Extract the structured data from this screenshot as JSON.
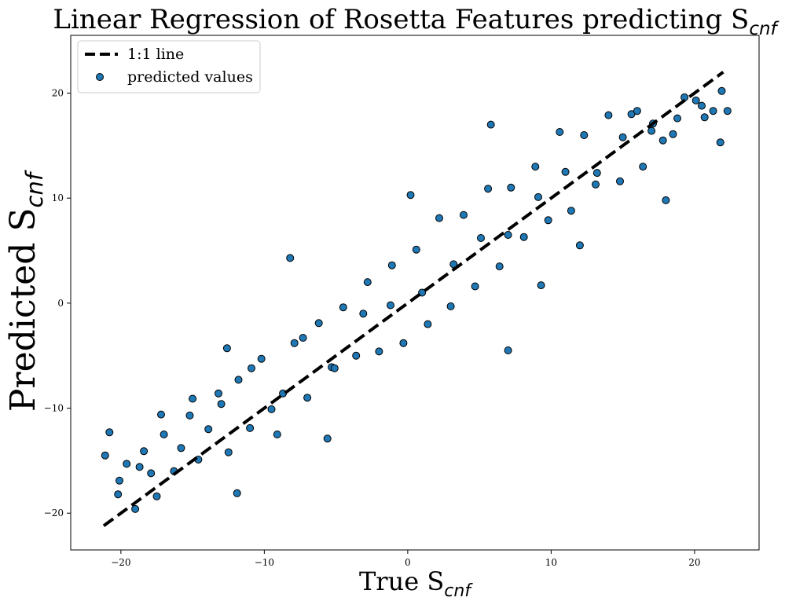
{
  "chart_data": {
    "type": "scatter",
    "title": "Linear Regression of Rosetta Features predicting S",
    "title_subscript": "cnf",
    "xlabel": "True S",
    "xlabel_subscript": "cnf",
    "ylabel": "Predicted S",
    "ylabel_subscript": "cnf",
    "xlim": [
      -23.5,
      24.5
    ],
    "ylim": [
      -23.5,
      25.5
    ],
    "xticks": [
      -20,
      -10,
      0,
      10,
      20
    ],
    "yticks": [
      -20,
      -10,
      0,
      10,
      20
    ],
    "xtick_labels": [
      "−20",
      "−10",
      "0",
      "10",
      "20"
    ],
    "ytick_labels": [
      "−20",
      "−10",
      "0",
      "10",
      "20"
    ],
    "grid": false,
    "legend_position": "top-left",
    "series": [
      {
        "name": "1:1 line",
        "kind": "line",
        "style": "dashed",
        "color": "#000000",
        "x": [
          -21.2,
          22.0
        ],
        "y": [
          -21.2,
          22.0
        ]
      },
      {
        "name": "predicted values",
        "kind": "scatter",
        "color": "#1f77b4",
        "edge_color": "#000000",
        "x": [
          -21.1,
          -20.8,
          -20.2,
          -19.6,
          -19.0,
          -18.4,
          -17.9,
          -17.5,
          -17.0,
          -16.3,
          -15.8,
          -15.2,
          -14.6,
          -13.9,
          -13.2,
          -12.5,
          -11.8,
          -11.0,
          -10.2,
          -9.5,
          -8.7,
          -7.9,
          -7.0,
          -6.2,
          -5.3,
          -4.5,
          -3.6,
          -2.8,
          -2.0,
          -1.1,
          -0.3,
          0.6,
          1.4,
          2.2,
          3.0,
          3.9,
          4.7,
          5.6,
          6.4,
          7.2,
          8.1,
          8.9,
          9.8,
          10.6,
          11.4,
          12.3,
          13.1,
          14.0,
          14.8,
          15.6,
          16.4,
          17.1,
          17.8,
          18.5,
          19.3,
          20.1,
          20.7,
          21.3,
          21.8,
          22.3,
          -20.1,
          -18.7,
          -17.2,
          -15.0,
          -13.0,
          -10.9,
          -9.1,
          -7.3,
          -5.1,
          -3.1,
          -1.2,
          1.0,
          3.2,
          5.1,
          7.0,
          9.1,
          11.0,
          13.2,
          15.0,
          17.0,
          18.8,
          20.5,
          21.9,
          -12.6,
          -8.2,
          0.2,
          5.8,
          9.3,
          12.0,
          18.0,
          -11.9,
          -5.6,
          7.0,
          16.0
        ],
        "y": [
          -14.5,
          -12.3,
          -18.2,
          -15.3,
          -19.6,
          -14.1,
          -16.2,
          -18.4,
          -12.5,
          -16.0,
          -13.8,
          -10.7,
          -14.9,
          -12.0,
          -8.6,
          -14.2,
          -7.3,
          -11.9,
          -5.3,
          -10.1,
          -8.6,
          -3.8,
          -9.0,
          -1.9,
          -6.1,
          -0.4,
          -5.0,
          2.0,
          -4.6,
          3.6,
          -3.8,
          5.1,
          -2.0,
          8.1,
          -0.3,
          8.4,
          1.6,
          10.9,
          3.5,
          11.0,
          6.3,
          13.0,
          7.9,
          16.3,
          8.8,
          16.0,
          11.3,
          17.9,
          11.6,
          18.0,
          13.0,
          17.1,
          15.5,
          16.1,
          19.6,
          19.3,
          17.7,
          18.3,
          15.3,
          18.3,
          -16.9,
          -15.6,
          -10.6,
          -9.1,
          -9.6,
          -6.2,
          -12.5,
          -3.3,
          -6.2,
          -1.0,
          -0.2,
          1.0,
          3.7,
          6.2,
          6.5,
          10.1,
          12.5,
          12.4,
          15.8,
          16.4,
          17.6,
          18.8,
          20.2,
          -4.3,
          4.3,
          10.3,
          17.0,
          1.7,
          5.5,
          9.8,
          -18.1,
          -12.9,
          -4.5,
          18.3
        ]
      }
    ]
  }
}
